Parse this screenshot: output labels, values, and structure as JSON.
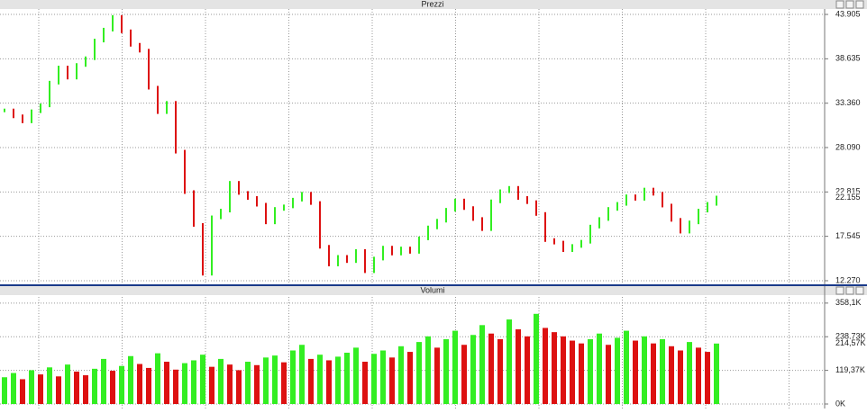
{
  "chart_data": [
    {
      "type": "bar",
      "title": "Prezzi",
      "up_color": "#33ee22",
      "down_color": "#dd1111",
      "values": [
        32500,
        31800,
        31200,
        32400,
        33100,
        35800,
        37600,
        36400,
        37900,
        38700,
        40800,
        42100,
        43600,
        41900,
        40300,
        39600,
        35200,
        32300,
        33400,
        27600,
        22800,
        18900,
        13100,
        19800,
        20600,
        23900,
        22700,
        22100,
        21300,
        19200,
        20800,
        21100,
        21900,
        22600,
        21500,
        16300,
        14200,
        15100,
        14600,
        15800,
        13400,
        14900,
        16200,
        15500,
        16100,
        15700,
        17300,
        18600,
        19400,
        20700,
        21800,
        20900,
        19600,
        18400,
        21700,
        22900,
        23300,
        22100,
        21600,
        20200,
        17100,
        16800,
        15900,
        16400,
        16900,
        18700,
        19600,
        20800,
        21400,
        22300,
        22000,
        23100,
        22600,
        21200,
        19500,
        18100,
        19200,
        20600,
        21400,
        22155
      ],
      "last_label": "22.155",
      "ylim": [
        11840,
        44550
      ],
      "yticks": [
        {
          "value": 12270,
          "label": "12.270"
        },
        {
          "value": 17545,
          "label": "17.545"
        },
        {
          "value": 22815,
          "label": "22.815"
        },
        {
          "value": 28090,
          "label": "28.090"
        },
        {
          "value": 33360,
          "label": "33.360"
        },
        {
          "value": 38635,
          "label": "38.635"
        },
        {
          "value": 43905,
          "label": "43.905"
        }
      ],
      "grid": true
    },
    {
      "type": "volume",
      "title": "Volumi",
      "up_color": "#33ee22",
      "down_color": "#dd1111",
      "values": [
        95000,
        110000,
        88000,
        120000,
        105000,
        130000,
        98000,
        140000,
        115000,
        102000,
        125000,
        160000,
        118000,
        135000,
        170000,
        142000,
        128000,
        180000,
        150000,
        122000,
        145000,
        155000,
        175000,
        132000,
        160000,
        140000,
        120000,
        150000,
        138000,
        165000,
        172000,
        148000,
        190000,
        210000,
        160000,
        175000,
        155000,
        168000,
        182000,
        200000,
        150000,
        178000,
        190000,
        165000,
        205000,
        185000,
        220000,
        240000,
        200000,
        230000,
        260000,
        210000,
        245000,
        280000,
        250000,
        230000,
        300000,
        265000,
        240000,
        320000,
        270000,
        255000,
        240000,
        225000,
        215000,
        230000,
        250000,
        210000,
        235000,
        260000,
        225000,
        240000,
        215000,
        230000,
        205000,
        190000,
        220000,
        200000,
        185000,
        214570
      ],
      "last_label": "214,57K",
      "ylim": [
        0,
        380000
      ],
      "yticks": [
        {
          "value": 0,
          "label": "0K"
        },
        {
          "value": 119370,
          "label": "119,37K"
        },
        {
          "value": 238730,
          "label": "238,73K"
        },
        {
          "value": 358100,
          "label": "358,1K"
        }
      ],
      "grid": true
    }
  ]
}
